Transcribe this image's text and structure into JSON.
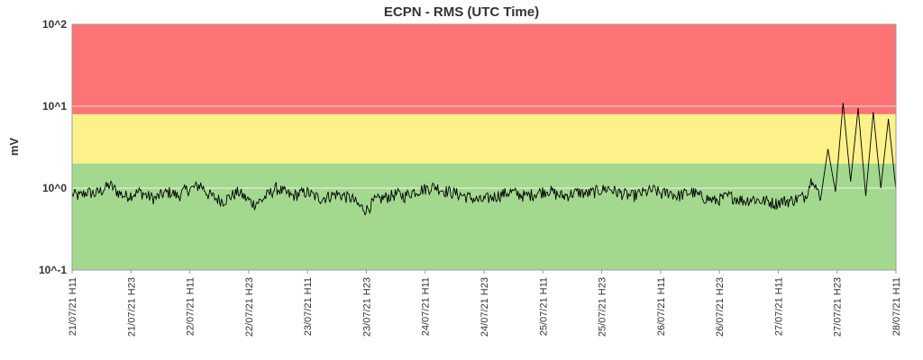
{
  "chart_data": {
    "type": "line",
    "title": "ECPN - RMS (UTC Time)",
    "ylabel": "mV",
    "xlabel": "",
    "yscale": "log",
    "ylim": [
      0.1,
      100
    ],
    "yticks": [
      {
        "value": 0.1,
        "label": "10^-1"
      },
      {
        "value": 1,
        "label": "10^0"
      },
      {
        "value": 10,
        "label": "10^1"
      },
      {
        "value": 100,
        "label": "10^2"
      }
    ],
    "xticks": [
      "21/07/21 H11",
      "21/07/21 H23",
      "22/07/21 H11",
      "22/07/21 H23",
      "23/07/21 H11",
      "23/07/21 H23",
      "24/07/21 H11",
      "24/07/21 H23",
      "25/07/21 H11",
      "25/07/21 H23",
      "26/07/21 H11",
      "26/07/21 H23",
      "27/07/21 H11",
      "27/07/21 H23",
      "28/07/21 H11"
    ],
    "bands": [
      {
        "from": 0.1,
        "to": 2,
        "color": "#a3d98e"
      },
      {
        "from": 2,
        "to": 8,
        "color": "#fdf28a"
      },
      {
        "from": 8,
        "to": 100,
        "color": "#fe7373"
      }
    ],
    "grid": true,
    "line_color": "#000000",
    "series": [
      {
        "values": [
          0.85,
          0.8,
          0.9,
          0.85,
          0.95,
          1.1,
          0.9,
          0.8,
          0.85,
          0.9,
          0.8,
          0.75,
          0.85,
          0.9,
          0.8,
          0.95,
          1.0,
          1.1,
          0.85,
          0.75,
          0.7,
          0.8,
          0.9,
          0.75,
          0.65,
          0.7,
          0.85,
          1.0,
          0.9,
          0.8,
          0.85,
          0.9,
          0.8,
          0.75,
          0.8,
          0.85,
          0.8,
          0.75,
          0.6,
          0.55,
          0.7,
          0.75,
          0.8,
          0.85,
          0.8,
          0.9,
          0.95,
          1.0,
          1.05,
          0.95,
          0.9,
          0.85,
          0.8,
          0.75,
          0.7,
          0.75,
          0.8,
          0.85,
          0.9,
          0.85,
          0.8,
          0.85,
          0.9,
          0.95,
          0.85,
          0.8,
          0.85,
          0.9,
          0.85,
          0.9,
          0.95,
          1.0,
          0.9,
          0.85,
          0.8,
          0.85,
          0.9,
          0.95,
          0.85,
          0.9,
          0.8,
          0.85,
          0.9,
          0.8,
          0.75,
          0.7,
          0.75,
          0.8,
          0.75,
          0.7,
          0.75,
          0.7,
          0.7,
          0.65,
          0.7,
          0.7,
          0.75,
          0.8,
          1.4,
          0.7,
          3.0,
          0.9,
          11.0,
          1.2,
          9.5,
          0.8,
          8.5,
          1.0,
          7.0,
          0.95
        ]
      }
    ]
  }
}
